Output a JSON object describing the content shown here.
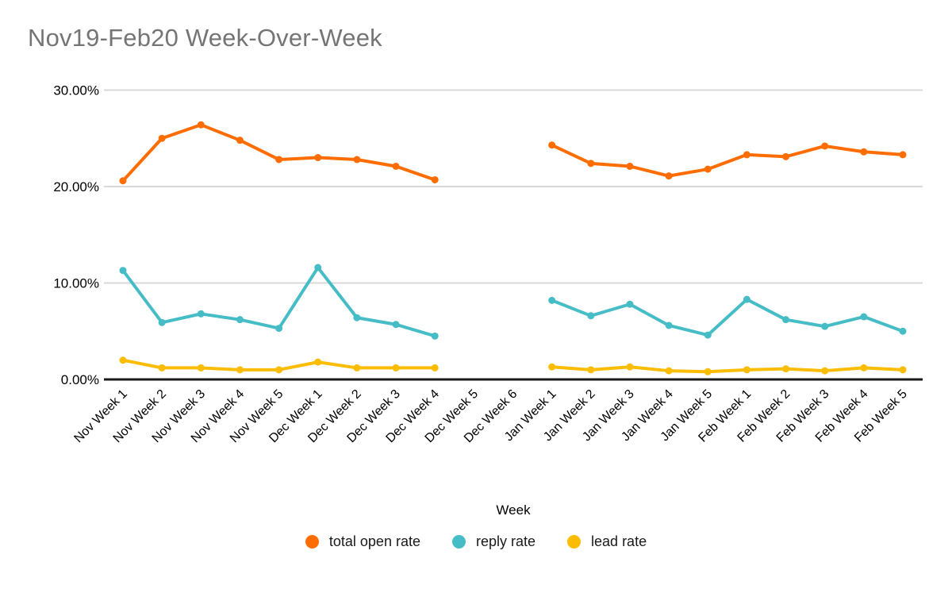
{
  "chart_data": {
    "type": "line",
    "title": "Nov19-Feb20 Week-Over-Week",
    "xlabel": "Week",
    "ylabel": "",
    "ylim": [
      0,
      30
    ],
    "grid": true,
    "legend_position": "bottom",
    "y_axis": {
      "ticks": [
        {
          "label": "30.00%",
          "value": 30
        },
        {
          "label": "20.00%",
          "value": 20
        },
        {
          "label": "10.00%",
          "value": 10
        },
        {
          "label": "0.00%",
          "value": 0
        }
      ]
    },
    "categories": [
      "Nov Week 1",
      "Nov Week 2",
      "Nov Week 3",
      "Nov Week 4",
      "Nov Week 5",
      "Dec Week 1",
      "Dec Week 2",
      "Dec Week 3",
      "Dec Week 4",
      "Dec Week 5",
      "Dec Week 6",
      "Jan Week 1",
      "Jan Week 2",
      "Jan Week 3",
      "Jan Week 4",
      "Jan Week 5",
      "Feb Week 1",
      "Feb Week 2",
      "Feb Week 3",
      "Feb Week 4",
      "Feb Week 5"
    ],
    "series": [
      {
        "name": "total open rate",
        "color": "#FF6D01",
        "values": [
          20.6,
          25.0,
          26.4,
          24.8,
          22.8,
          23.0,
          22.8,
          22.1,
          20.7,
          null,
          null,
          24.3,
          22.4,
          22.1,
          21.1,
          21.8,
          23.3,
          23.1,
          24.2,
          23.6,
          23.3
        ]
      },
      {
        "name": "reply rate",
        "color": "#46BDC6",
        "values": [
          11.3,
          5.9,
          6.8,
          6.2,
          5.3,
          11.6,
          6.4,
          5.7,
          4.5,
          null,
          null,
          8.2,
          6.6,
          7.8,
          5.6,
          4.6,
          8.3,
          6.2,
          5.5,
          6.5,
          5.0
        ]
      },
      {
        "name": "lead rate",
        "color": "#FBBC04",
        "values": [
          2.0,
          1.2,
          1.2,
          1.0,
          1.0,
          1.8,
          1.2,
          1.2,
          1.2,
          null,
          null,
          1.3,
          1.0,
          1.3,
          0.9,
          0.8,
          1.0,
          1.1,
          0.9,
          1.2,
          1.0
        ]
      }
    ]
  }
}
